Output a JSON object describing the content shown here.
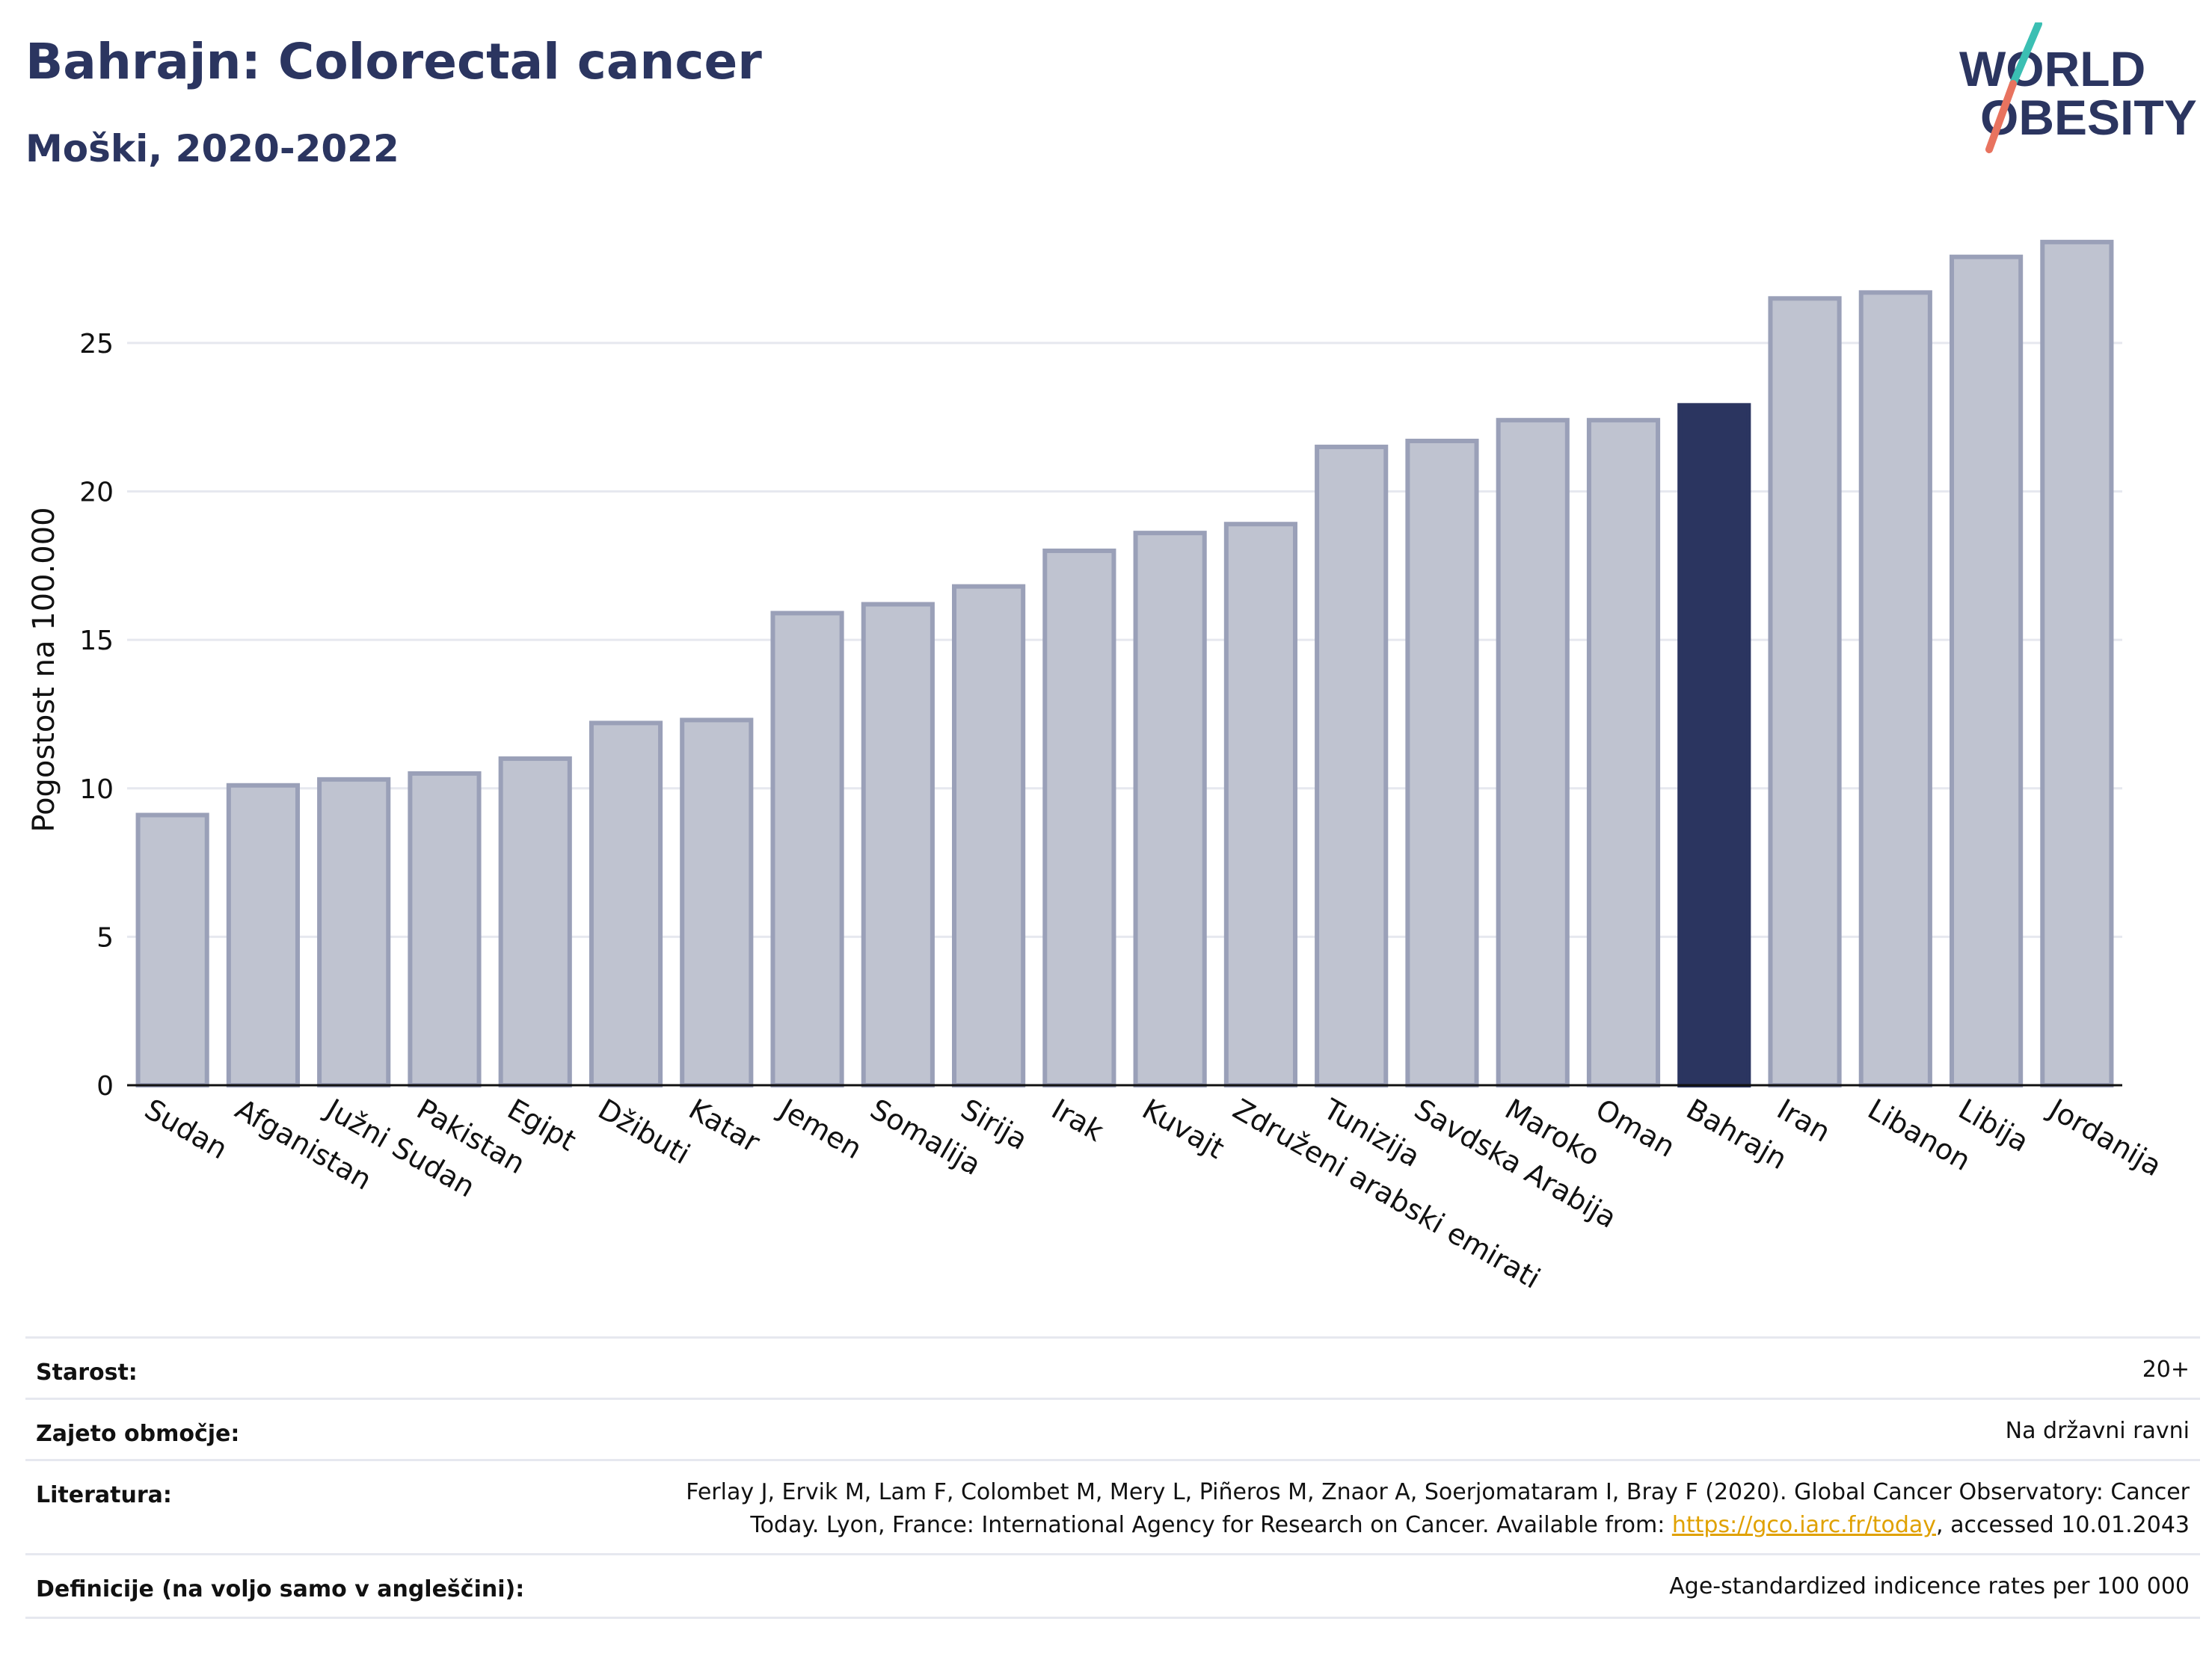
{
  "header": {
    "title": "Bahrajn: Colorectal cancer",
    "subtitle": "Moški, 2020-2022"
  },
  "logo": {
    "line1": "WORLD",
    "line2": "OBESITY",
    "colors": {
      "text": "#2b3560",
      "slash_teal": "#3bbfb3",
      "slash_coral": "#e8735f"
    }
  },
  "chart_data": {
    "type": "bar",
    "ylabel": "Pogostost na 100.000",
    "ylim": [
      0,
      29
    ],
    "yticks": [
      0,
      5,
      10,
      15,
      20,
      25
    ],
    "grid": true,
    "highlight": "Bahrajn",
    "colors": {
      "bar": "#bfc3d0",
      "bar_border": "#9aa0b8",
      "highlight": "#2b3560",
      "grid": "#e6e8ef",
      "axis": "#111111"
    },
    "categories": [
      "Sudan",
      "Afganistan",
      "Južni Sudan",
      "Pakistan",
      "Egipt",
      "Džibuti",
      "Katar",
      "Jemen",
      "Somalija",
      "Sirija",
      "Irak",
      "Kuvajt",
      "Združeni arabski emirati",
      "Tunizija",
      "Savdska Arabija",
      "Maroko",
      "Oman",
      "Bahrajn",
      "Iran",
      "Libanon",
      "Libija",
      "Jordanija"
    ],
    "values": [
      9.1,
      10.1,
      10.3,
      10.5,
      11.0,
      12.2,
      12.3,
      15.9,
      16.2,
      16.8,
      18.0,
      18.6,
      18.9,
      21.5,
      21.7,
      22.4,
      22.4,
      22.9,
      26.5,
      26.7,
      27.9,
      28.4
    ]
  },
  "meta": {
    "age_label": "Starost:",
    "age_value": "20+",
    "coverage_label": "Zajeto območje:",
    "coverage_value": "Na državni ravni",
    "reference_label": "Literatura:",
    "reference_line1": "Ferlay J, Ervik M, Lam F, Colombet M, Mery L, Piñeros M, Znaor A, Soerjomataram I, Bray F (2020). Global Cancer Observatory: Cancer",
    "reference_line2_pre": "Today. Lyon, France: International Agency for Research on Cancer. Available from: ",
    "reference_link": "https://gco.iarc.fr/today",
    "reference_line2_post": ", accessed 10.01.2043",
    "definitions_label": "Definicije (na voljo samo v angleščini):",
    "definitions_value": "Age-standardized indicence rates per 100 000"
  }
}
